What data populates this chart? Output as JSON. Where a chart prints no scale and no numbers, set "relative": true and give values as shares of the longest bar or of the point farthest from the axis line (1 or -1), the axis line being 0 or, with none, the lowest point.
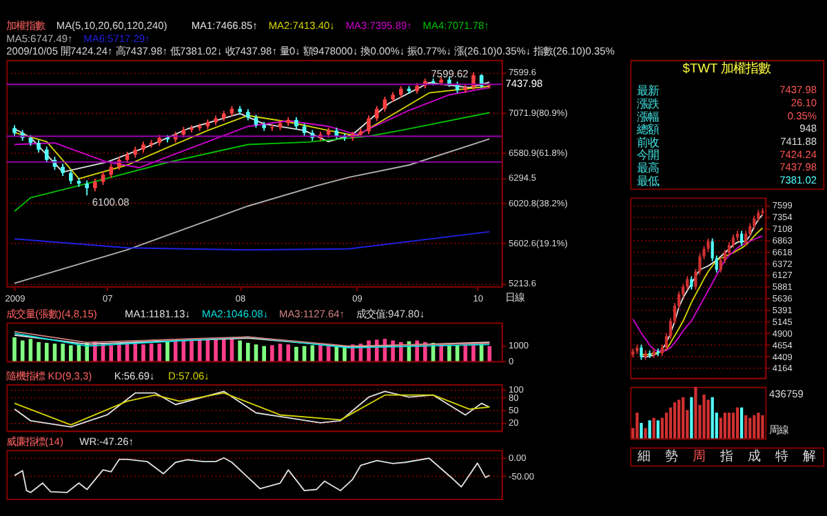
{
  "chart_data": [
    {
      "type": "candlestick",
      "title": "加權指數",
      "legend_title": "MA(5,10,20,60,120,240)",
      "subtitle": "2009/10/05 開7424.24↑ 高7437.98↑ 低7381.02↓ 收7437.98↑ 量0↓ 額9478000↓ 換0.00%↓ 振0.77%↓ 漲(26.10)0.35%↓ 指數(26.10)0.35%",
      "x": [
        "2009-06-08",
        "2009-06-10",
        "2009-06-12",
        "2009-06-14",
        "2009-06-16",
        "2009-06-18",
        "2009-06-20",
        "2009-06-22",
        "2009-06-24",
        "2009-06-26",
        "2009-06-28",
        "2009-06-30",
        "2009-07-02",
        "2009-07-04",
        "2009-07-06",
        "2009-07-08",
        "2009-07-10",
        "2009-07-12",
        "2009-07-14",
        "2009-07-16",
        "2009-07-18",
        "2009-07-20",
        "2009-07-22",
        "2009-07-24",
        "2009-07-26",
        "2009-07-28",
        "2009-07-30",
        "2009-08-01",
        "2009-08-03",
        "2009-08-05",
        "2009-08-07",
        "2009-08-09",
        "2009-08-11",
        "2009-08-13",
        "2009-08-15",
        "2009-08-17",
        "2009-08-19",
        "2009-08-21",
        "2009-08-23",
        "2009-08-25",
        "2009-08-27",
        "2009-08-29",
        "2009-08-31",
        "2009-09-02",
        "2009-09-04",
        "2009-09-06",
        "2009-09-08",
        "2009-09-10",
        "2009-09-12",
        "2009-09-14",
        "2009-09-16",
        "2009-09-18",
        "2009-09-20",
        "2009-09-22",
        "2009-09-24",
        "2009-09-26",
        "2009-09-28",
        "2009-09-30",
        "2009-10-02",
        "2009-10-04"
      ],
      "ohlc": [
        [
          6880,
          6915,
          6785,
          6820
        ],
        [
          6820,
          6855,
          6725,
          6760
        ],
        [
          6760,
          6795,
          6665,
          6700
        ],
        [
          6700,
          6735,
          6585,
          6620
        ],
        [
          6620,
          6655,
          6465,
          6500
        ],
        [
          6500,
          6535,
          6385,
          6420
        ],
        [
          6420,
          6455,
          6315,
          6350
        ],
        [
          6350,
          6385,
          6225,
          6260
        ],
        [
          6260,
          6295,
          6195,
          6230
        ],
        [
          6230,
          6265,
          6100.08,
          6180
        ],
        [
          6180,
          6285,
          6145,
          6250
        ],
        [
          6250,
          6365,
          6215,
          6330
        ],
        [
          6330,
          6455,
          6295,
          6420
        ],
        [
          6420,
          6535,
          6385,
          6500
        ],
        [
          6500,
          6595,
          6465,
          6560
        ],
        [
          6560,
          6655,
          6525,
          6620
        ],
        [
          6620,
          6715,
          6585,
          6680
        ],
        [
          6680,
          6735,
          6645,
          6700
        ],
        [
          6700,
          6795,
          6665,
          6760
        ],
        [
          6760,
          6795,
          6705,
          6740
        ],
        [
          6740,
          6835,
          6705,
          6800
        ],
        [
          6800,
          6895,
          6765,
          6860
        ],
        [
          6860,
          6915,
          6825,
          6880
        ],
        [
          6880,
          6935,
          6845,
          6900
        ],
        [
          6900,
          6985,
          6865,
          6950
        ],
        [
          6950,
          7035,
          6915,
          7000
        ],
        [
          7000,
          7095,
          6965,
          7060
        ],
        [
          7060,
          7155,
          7025,
          7120
        ],
        [
          7120,
          7155,
          7045,
          7080
        ],
        [
          7080,
          7115,
          6975,
          7010
        ],
        [
          7010,
          7045,
          6885,
          6920
        ],
        [
          6920,
          6955,
          6845,
          6880
        ],
        [
          6880,
          6925,
          6845,
          6890
        ],
        [
          6890,
          6975,
          6855,
          6940
        ],
        [
          6940,
          7015,
          6905,
          6980
        ],
        [
          6980,
          7015,
          6865,
          6900
        ],
        [
          6900,
          6935,
          6785,
          6820
        ],
        [
          6820,
          6855,
          6725,
          6760
        ],
        [
          6760,
          6835,
          6725,
          6800
        ],
        [
          6800,
          6885,
          6765,
          6850
        ],
        [
          6850,
          6885,
          6745,
          6780
        ],
        [
          6780,
          6815,
          6725,
          6760
        ],
        [
          6760,
          6835,
          6725,
          6800
        ],
        [
          6800,
          6875,
          6765,
          6840
        ],
        [
          6840,
          7035,
          6805,
          7000
        ],
        [
          7000,
          7155,
          6965,
          7120
        ],
        [
          7120,
          7275,
          7085,
          7240
        ],
        [
          7240,
          7335,
          7205,
          7300
        ],
        [
          7300,
          7415,
          7265,
          7380
        ],
        [
          7380,
          7415,
          7315,
          7350
        ],
        [
          7350,
          7455,
          7315,
          7420
        ],
        [
          7420,
          7515,
          7385,
          7480
        ],
        [
          7480,
          7515,
          7425,
          7460
        ],
        [
          7460,
          7535,
          7425,
          7500
        ],
        [
          7500,
          7535,
          7405,
          7440
        ],
        [
          7440,
          7475,
          7325,
          7360
        ],
        [
          7360,
          7435,
          7325,
          7400
        ],
        [
          7400,
          7599.62,
          7365,
          7560
        ],
        [
          7560,
          7575,
          7390,
          7411.88
        ],
        [
          7424.24,
          7437.98,
          7381.02,
          7437.98
        ]
      ],
      "colors": [
        "#54ffff",
        "#54ffff",
        "#54ffff",
        "#54ffff",
        "#54ffff",
        "#54ffff",
        "#54ffff",
        "#54ffff",
        "#54ffff",
        "#54ffff",
        "#ff4040",
        "#ff4040",
        "#ff4040",
        "#ff4040",
        "#ff4040",
        "#ff4040",
        "#ff4040",
        "#ff4040",
        "#ff4040",
        "#54ffff",
        "#ff4040",
        "#ff4040",
        "#ff4040",
        "#ff4040",
        "#ff4040",
        "#ff4040",
        "#ff4040",
        "#ff4040",
        "#54ffff",
        "#54ffff",
        "#54ffff",
        "#54ffff",
        "#ff4040",
        "#ff4040",
        "#ff4040",
        "#54ffff",
        "#54ffff",
        "#54ffff",
        "#ff4040",
        "#ff4040",
        "#54ffff",
        "#54ffff",
        "#ff4040",
        "#ff4040",
        "#ff4040",
        "#ff4040",
        "#ff4040",
        "#ff4040",
        "#ff4040",
        "#54ffff",
        "#ff4040",
        "#ff4040",
        "#54ffff",
        "#ff4040",
        "#54ffff",
        "#54ffff",
        "#ff4040",
        "#ff4040",
        "#54ffff",
        "#ff4040"
      ],
      "series": [
        {
          "name": "MA1:7466.85↑",
          "type": "line",
          "color": "#e0e0e0",
          "x": [
            "2009-06-08",
            "2009-06-12",
            "2009-06-20",
            "2009-07-01",
            "2009-07-11",
            "2009-07-21",
            "2009-08-03",
            "2009-08-09",
            "2009-08-19",
            "2009-08-25",
            "2009-08-31",
            "2009-09-09",
            "2009-09-19",
            "2009-09-29",
            "2009-10-04"
          ],
          "values": [
            6870,
            6765,
            6360,
            6475,
            6655,
            6870,
            7060,
            6930,
            6850,
            6715,
            6800,
            7190,
            7460,
            7395,
            7466.85
          ]
        },
        {
          "name": "MA2:7413.40↓",
          "type": "line",
          "color": "#d4d400",
          "x": [
            "2009-06-08",
            "2009-06-16",
            "2009-06-24",
            "2009-07-06",
            "2009-07-16",
            "2009-07-26",
            "2009-08-05",
            "2009-08-15",
            "2009-08-25",
            "2009-09-01",
            "2009-09-09",
            "2009-09-19",
            "2009-10-04"
          ],
          "values": [
            6825,
            6715,
            6285,
            6440,
            6645,
            6850,
            7035,
            6955,
            6850,
            6785,
            7020,
            7325,
            7413.4
          ]
        },
        {
          "name": "MA3:7395.89↑",
          "type": "line",
          "color": "#cc00cc",
          "x": [
            "2009-06-08",
            "2009-06-18",
            "2009-07-01",
            "2009-07-09",
            "2009-07-26",
            "2009-08-05",
            "2009-08-15",
            "2009-08-25",
            "2009-09-01",
            "2009-09-14",
            "2009-09-24",
            "2009-10-04"
          ],
          "values": [
            6680,
            6700,
            6475,
            6410,
            6715,
            6900,
            6970,
            6900,
            6800,
            7100,
            7300,
            7395.89
          ]
        },
        {
          "name": "MA4:7071.78↑",
          "type": "line",
          "color": "#00c000",
          "x": [
            "2009-06-08",
            "2009-06-12",
            "2009-06-26",
            "2009-07-16",
            "2009-08-05",
            "2009-08-20",
            "2009-09-04",
            "2009-09-13",
            "2009-10-04"
          ],
          "values": [
            5930,
            6075,
            6230,
            6470,
            6680,
            6710,
            6780,
            6860,
            7071.78
          ]
        },
        {
          "name": "MA5:6747.49↑",
          "type": "line",
          "color": "#b0b0b0",
          "x": [
            "2009-06-08",
            "2009-07-06",
            "2009-08-05",
            "2009-08-22",
            "2009-08-30",
            "2009-09-14",
            "2009-10-04"
          ],
          "values": [
            5215,
            5535,
            5985,
            6205,
            6300,
            6440,
            6747.49
          ]
        },
        {
          "name": "MA6:5717.29↑",
          "type": "line",
          "color": "#2020e0",
          "x": [
            "2009-06-08",
            "2009-07-06",
            "2009-08-05",
            "2009-08-30",
            "2009-10-04"
          ],
          "values": [
            5645,
            5555,
            5535,
            5545,
            5717.29
          ]
        }
      ],
      "log": true,
      "ylim": [
        5185,
        7770
      ],
      "yticks": [
        {
          "value": 7599.6,
          "label": "7599.6"
        },
        {
          "value": 7071.9,
          "label": "7071.9(80.9%)"
        },
        {
          "value": 6580.9,
          "label": "6580.9(61.8%)"
        },
        {
          "value": 6294.5,
          "label": "6294.5"
        },
        {
          "value": 6020.8,
          "label": "6020.8(38.2%)"
        },
        {
          "value": 5602.6,
          "label": "5602.6(19.1%)"
        },
        {
          "value": 5213.6,
          "label": "5213.6"
        }
      ],
      "xlim": [
        "2009-06-06",
        "2009-10-07"
      ],
      "xticks": [
        {
          "value": "2009-06-08",
          "label": "2009"
        },
        {
          "value": "2009-07-01",
          "label": "07"
        },
        {
          "value": "2009-08-03",
          "label": "08"
        },
        {
          "value": "2009-09-01",
          "label": "09"
        },
        {
          "value": "2009-10-01",
          "label": "10"
        }
      ],
      "grid": "y",
      "ref_lines": [
        {
          "axis": "y",
          "value": 7437.98,
          "label": "7437.98",
          "color": "#9a00b0"
        },
        {
          "axis": "y",
          "value": 6780,
          "color": "#9a00b0"
        },
        {
          "axis": "y",
          "value": 6475,
          "color": "#9a00b0"
        }
      ],
      "annotations": [
        {
          "text": "7599.62",
          "x": "2009-09-30",
          "y": 7599.62
        },
        {
          "text": "6100.08",
          "x": "2009-06-26",
          "y": 6100.08
        },
        "日線"
      ]
    },
    {
      "type": "bar",
      "title": "成交量(張數)(4,8,15)",
      "subtitle": "成交值:947.80↓",
      "x": [
        "2009-06-08",
        "2009-06-10",
        "2009-06-12",
        "2009-06-14",
        "2009-06-16",
        "2009-06-18",
        "2009-06-20",
        "2009-06-22",
        "2009-06-24",
        "2009-06-26",
        "2009-06-28",
        "2009-06-30",
        "2009-07-02",
        "2009-07-04",
        "2009-07-06",
        "2009-07-08",
        "2009-07-10",
        "2009-07-12",
        "2009-07-14",
        "2009-07-16",
        "2009-07-18",
        "2009-07-20",
        "2009-07-22",
        "2009-07-24",
        "2009-07-26",
        "2009-07-28",
        "2009-07-30",
        "2009-08-01",
        "2009-08-03",
        "2009-08-05",
        "2009-08-07",
        "2009-08-09",
        "2009-08-11",
        "2009-08-13",
        "2009-08-15",
        "2009-08-17",
        "2009-08-19",
        "2009-08-21",
        "2009-08-23",
        "2009-08-25",
        "2009-08-27",
        "2009-08-29",
        "2009-08-31",
        "2009-09-02",
        "2009-09-04",
        "2009-09-06",
        "2009-09-08",
        "2009-09-10",
        "2009-09-12",
        "2009-09-14",
        "2009-09-16",
        "2009-09-18",
        "2009-09-20",
        "2009-09-22",
        "2009-09-24",
        "2009-09-26",
        "2009-09-28",
        "2009-09-30",
        "2009-10-02",
        "2009-10-04"
      ],
      "series": [
        {
          "name": "MA1:1181.13↓",
          "type": "line",
          "color": "#e0e0e0",
          "x": [
            "2009-06-08",
            "2009-06-26",
            "2009-08-05",
            "2009-08-30",
            "2009-10-04"
          ],
          "values": [
            1640,
            1070,
            1450,
            900,
            1181.13
          ]
        },
        {
          "name": "MA2:1046.08↓",
          "type": "line",
          "color": "#00e0e0",
          "x": [
            "2009-06-08",
            "2009-06-26",
            "2009-08-05",
            "2009-08-30",
            "2009-10-04"
          ],
          "values": [
            1750,
            950,
            1520,
            840,
            1046.08
          ]
        },
        {
          "name": "MA3:1127.64↑",
          "type": "line",
          "color": "#d08080",
          "x": [
            "2009-06-08",
            "2009-06-26",
            "2009-08-05",
            "2009-08-30",
            "2009-10-04"
          ],
          "values": [
            1860,
            1180,
            1520,
            950,
            1127.64
          ]
        },
        {
          "type": "bar",
          "values": [
            1500,
            1300,
            1400,
            1200,
            1150,
            1100,
            1100,
            1000,
            1050,
            1150,
            1250,
            1150,
            1000,
            1100,
            1200,
            1150,
            1050,
            1100,
            1100,
            1200,
            1250,
            1300,
            1350,
            1400,
            1450,
            1400,
            1450,
            1400,
            1300,
            1150,
            1050,
            950,
            1000,
            1100,
            1050,
            900,
            950,
            1000,
            1050,
            1100,
            1000,
            950,
            1050,
            1100,
            1300,
            1350,
            1400,
            1300,
            1200,
            1250,
            1300,
            1200,
            1150,
            1100,
            1050,
            1000,
            1100,
            1200,
            1150,
            947.8
          ],
          "colors": [
            "#80ff80",
            "#80ff80",
            "#80ff80",
            "#80ff80",
            "#80ff80",
            "#80ff80",
            "#80ff80",
            "#80ff80",
            "#80ff80",
            "#80ff80",
            "#ff3d8b",
            "#ff3d8b",
            "#ff3d8b",
            "#ff3d8b",
            "#ff3d8b",
            "#ff3d8b",
            "#ff3d8b",
            "#ff3d8b",
            "#ff3d8b",
            "#80ff80",
            "#ff3d8b",
            "#ff3d8b",
            "#ff3d8b",
            "#ff3d8b",
            "#ff3d8b",
            "#ff3d8b",
            "#ff3d8b",
            "#ff3d8b",
            "#80ff80",
            "#80ff80",
            "#80ff80",
            "#80ff80",
            "#ff3d8b",
            "#ff3d8b",
            "#ff3d8b",
            "#80ff80",
            "#80ff80",
            "#80ff80",
            "#ff3d8b",
            "#ff3d8b",
            "#80ff80",
            "#80ff80",
            "#ff3d8b",
            "#ff3d8b",
            "#ff3d8b",
            "#ff3d8b",
            "#ff3d8b",
            "#ff3d8b",
            "#ff3d8b",
            "#80ff80",
            "#ff3d8b",
            "#ff3d8b",
            "#80ff80",
            "#ff3d8b",
            "#80ff80",
            "#80ff80",
            "#ff3d8b",
            "#ff3d8b",
            "#80ff80",
            "#ff3d8b"
          ]
        }
      ],
      "xlim": [
        "2009-06-06",
        "2009-10-07"
      ],
      "ylim": [
        0,
        2430
      ],
      "yticks": [
        0,
        1000
      ],
      "tick_labels": "y"
    },
    {
      "type": "line",
      "title": "隨機指標 KD(9,3,3)",
      "series": [
        {
          "name": "K:56.69↓",
          "color": "#e0e0e0",
          "x": [
            "2009-06-08",
            "2009-06-12",
            "2009-06-22",
            "2009-07-01",
            "2009-07-08",
            "2009-07-13",
            "2009-07-18",
            "2009-07-30",
            "2009-08-07",
            "2009-08-15",
            "2009-08-23",
            "2009-08-28",
            "2009-09-04",
            "2009-09-08",
            "2009-09-14",
            "2009-09-20",
            "2009-09-28",
            "2009-10-02",
            "2009-10-04"
          ],
          "values": [
            52,
            24,
            9,
            38,
            91,
            91,
            63,
            95,
            43,
            31,
            19,
            24,
            81,
            95,
            81,
            86,
            38,
            66,
            56.69
          ]
        },
        {
          "name": "D:57.06↓",
          "color": "#d4d400",
          "x": [
            "2009-06-08",
            "2009-06-22",
            "2009-07-06",
            "2009-07-13",
            "2009-07-19",
            "2009-07-30",
            "2009-08-13",
            "2009-08-28",
            "2009-09-08",
            "2009-09-20",
            "2009-09-29",
            "2009-10-04"
          ],
          "values": [
            66,
            14,
            71,
            86,
            71,
            91,
            38,
            26,
            86,
            86,
            52,
            57.06
          ]
        }
      ],
      "xlim": [
        "2009-06-06",
        "2009-10-07"
      ],
      "ylim": [
        0,
        112
      ],
      "yticks": [
        20,
        50,
        80,
        100
      ],
      "grid": "y",
      "tick_labels": "y"
    },
    {
      "type": "line",
      "title": "威廉指標(14)",
      "series": [
        {
          "name": "WR:-47.26↑",
          "color": "#e0e0e0",
          "x": [
            "2009-06-08",
            "2009-06-10",
            "2009-06-11",
            "2009-06-12",
            "2009-06-15",
            "2009-06-17",
            "2009-06-21",
            "2009-06-24",
            "2009-06-26",
            "2009-06-30",
            "2009-07-02",
            "2009-07-04",
            "2009-07-06",
            "2009-07-11",
            "2009-07-15",
            "2009-07-18",
            "2009-07-21",
            "2009-07-25",
            "2009-07-28",
            "2009-07-30",
            "2009-08-01",
            "2009-08-04",
            "2009-08-08",
            "2009-08-13",
            "2009-08-15",
            "2009-08-19",
            "2009-08-22",
            "2009-08-24",
            "2009-08-28",
            "2009-08-31",
            "2009-09-02",
            "2009-09-06",
            "2009-09-10",
            "2009-09-13",
            "2009-09-19",
            "2009-09-25",
            "2009-09-27",
            "2009-10-01",
            "2009-10-03",
            "2009-10-04"
          ],
          "values": [
            -48,
            -35,
            -88,
            -93,
            -68,
            -91,
            -93,
            -68,
            -85,
            -33,
            -38,
            -5,
            -5,
            -11,
            -43,
            -13,
            -6,
            -11,
            -11,
            -1,
            -13,
            -43,
            -83,
            -68,
            -33,
            -88,
            -85,
            -63,
            -88,
            -58,
            -21,
            -8,
            -16,
            -13,
            -2,
            -58,
            -78,
            -15,
            -53,
            -47.26
          ]
        }
      ],
      "xlim": [
        "2009-06-06",
        "2009-10-07"
      ],
      "ylim": [
        -110,
        20
      ],
      "yticks": [
        {
          "value": 0,
          "label": "0.00"
        },
        {
          "value": -50,
          "label": "-50.00"
        }
      ],
      "grid": "y",
      "tick_labels": "y"
    },
    {
      "type": "other",
      "title": "$TWT 加權指數",
      "categories": [
        "最新",
        "漲跌",
        "漲幅",
        "總額",
        "前收",
        "今開",
        "最高",
        "最低"
      ],
      "value_labels": [
        "7437.98",
        "26.10",
        "0.35%",
        "948",
        "7411.88",
        "7424.24",
        "7437.98",
        "7381.02"
      ],
      "colors": [
        "#ff5555",
        "#ff5555",
        "#ff5555",
        "#dddddd",
        "#dddddd",
        "#ff5555",
        "#ff5555",
        "#54ffff"
      ]
    },
    {
      "type": "candlestick",
      "categories": [
        null,
        null,
        null,
        null,
        null,
        null,
        null,
        null,
        null,
        null,
        null,
        null,
        null,
        null,
        null,
        null,
        null,
        null,
        null,
        null,
        null,
        null,
        null,
        null,
        null,
        null,
        null,
        null,
        null,
        null,
        null,
        null
      ],
      "ohlc": [
        [
          4450,
          4580,
          4390,
          4520
        ],
        [
          4520,
          4660,
          4460,
          4600
        ],
        [
          4600,
          4660,
          4340,
          4400
        ],
        [
          4400,
          4540,
          4340,
          4480
        ],
        [
          4480,
          4540,
          4380,
          4440
        ],
        [
          4440,
          4580,
          4380,
          4520
        ],
        [
          4520,
          4580,
          4420,
          4480
        ],
        [
          4480,
          4660,
          4420,
          4600
        ],
        [
          4600,
          4900,
          4540,
          4840
        ],
        [
          4840,
          5220,
          4780,
          5160
        ],
        [
          5160,
          5540,
          5100,
          5480
        ],
        [
          5480,
          5780,
          5420,
          5720
        ],
        [
          5720,
          5940,
          5660,
          5880
        ],
        [
          5880,
          6100,
          5820,
          6040
        ],
        [
          6040,
          6100,
          5820,
          5880
        ],
        [
          5880,
          6260,
          5820,
          6200
        ],
        [
          6200,
          6580,
          6140,
          6520
        ],
        [
          6520,
          6740,
          6460,
          6680
        ],
        [
          6680,
          6900,
          6620,
          6840
        ],
        [
          6840,
          6900,
          6420,
          6480
        ],
        [
          6480,
          6540,
          6180,
          6240
        ],
        [
          6240,
          6500,
          6180,
          6440
        ],
        [
          6440,
          6660,
          6380,
          6600
        ],
        [
          6600,
          6820,
          6540,
          6760
        ],
        [
          6760,
          6980,
          6700,
          6920
        ],
        [
          6920,
          7060,
          6860,
          7000
        ],
        [
          7000,
          7060,
          6740,
          6800
        ],
        [
          6800,
          7060,
          6740,
          7000
        ],
        [
          7000,
          7220,
          6940,
          7160
        ],
        [
          7160,
          7380,
          7100,
          7320
        ],
        [
          7320,
          7500,
          7260,
          7440
        ],
        [
          7440,
          7540,
          7380,
          7480
        ]
      ],
      "colors": [
        "#d03030",
        "#d03030",
        "#54ffff",
        "#d03030",
        "#54ffff",
        "#d03030",
        "#54ffff",
        "#d03030",
        "#d03030",
        "#d03030",
        "#d03030",
        "#d03030",
        "#d03030",
        "#d03030",
        "#54ffff",
        "#d03030",
        "#d03030",
        "#d03030",
        "#d03030",
        "#54ffff",
        "#54ffff",
        "#d03030",
        "#d03030",
        "#d03030",
        "#d03030",
        "#d03030",
        "#54ffff",
        "#d03030",
        "#d03030",
        "#d03030",
        "#d03030",
        "#d03030"
      ],
      "series": [
        {
          "type": "line",
          "color": "#e0e0e0",
          "values": [
            null,
            null,
            4420,
            4400,
            4420,
            4440,
            4480,
            4560,
            4700,
            4900,
            5150,
            5450,
            5650,
            5800,
            5950,
            6100,
            6240,
            6280,
            6320,
            6380,
            6440,
            6520,
            6600,
            6680,
            6760,
            6820,
            6840,
            6840,
            6960,
            7150,
            7300,
            7400
          ]
        },
        {
          "type": "line",
          "color": "#d4d400",
          "values": [
            null,
            null,
            4460,
            4440,
            4460,
            4480,
            4490,
            4520,
            4560,
            4700,
            4850,
            5000,
            5160,
            5350,
            5550,
            5720,
            5880,
            6050,
            6200,
            6320,
            6440,
            6480,
            6520,
            6560,
            6600,
            6650,
            6700,
            6760,
            6850,
            6950,
            7040,
            7120
          ]
        },
        {
          "type": "line",
          "color": "#cc00cc",
          "values": [
            5200,
            5050,
            4900,
            4780,
            4650,
            4560,
            4520,
            4520,
            4540,
            4600,
            4700,
            4820,
            4950,
            5060,
            5160,
            5320,
            5480,
            5640,
            5800,
            5960,
            6120,
            6280,
            6440,
            6540,
            6620,
            6700,
            6760,
            6800,
            6840,
            6880,
            6920,
            6950
          ]
        }
      ],
      "ylim": [
        3960,
        7760
      ],
      "yticks": [
        7599,
        7354,
        7108,
        6863,
        6618,
        6372,
        6127,
        5881,
        5636,
        5391,
        5145,
        4900,
        4654,
        4409,
        4164
      ],
      "grid": "y",
      "tick_labels": "y"
    },
    {
      "type": "bar",
      "relative": true,
      "categories": [
        null,
        null,
        null,
        null,
        null,
        null,
        null,
        null,
        null,
        null,
        null,
        null,
        null,
        null,
        null,
        null,
        null,
        null,
        null,
        null,
        null,
        null,
        null,
        null,
        null,
        null,
        null,
        null,
        null,
        null,
        null,
        null
      ],
      "values": [
        0.2,
        0.5,
        0.3,
        0.2,
        0.35,
        0.4,
        0.35,
        0.4,
        0.5,
        0.6,
        0.7,
        0.75,
        0.8,
        0.55,
        0.8,
        1.0,
        0.65,
        0.85,
        0.75,
        0.8,
        0.5,
        0.4,
        0.5,
        0.5,
        0.5,
        0.6,
        0.6,
        0.45,
        0.4,
        0.45,
        0.5,
        0.45
      ],
      "colors": [
        "#d03030",
        "#d03030",
        "#54ffff",
        "#d03030",
        "#54ffff",
        "#d03030",
        "#54ffff",
        "#d03030",
        "#d03030",
        "#d03030",
        "#d03030",
        "#d03030",
        "#d03030",
        "#d03030",
        "#54ffff",
        "#d03030",
        "#d03030",
        "#d03030",
        "#d03030",
        "#54ffff",
        "#54ffff",
        "#d03030",
        "#d03030",
        "#d03030",
        "#d03030",
        "#d03030",
        "#54ffff",
        "#d03030",
        "#d03030",
        "#d03030",
        "#d03030",
        "#d03030"
      ],
      "tick_labels": false,
      "annotations": [
        "436759",
        "周線"
      ]
    },
    {
      "type": "other",
      "categories": [
        "細",
        "勢",
        "周",
        "指",
        "成",
        "特",
        "解"
      ],
      "colors": [
        "#dddddd",
        "#dddddd",
        "#ff5555",
        "#dddddd",
        "#dddddd",
        "#dddddd",
        "#dddddd"
      ]
    }
  ]
}
